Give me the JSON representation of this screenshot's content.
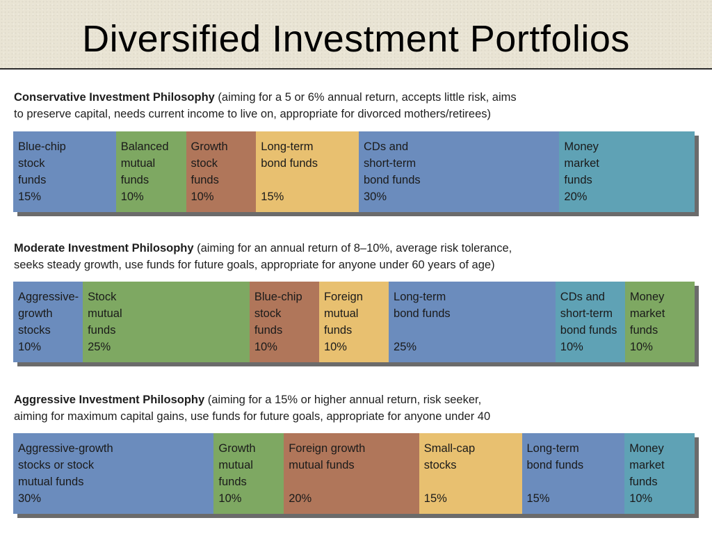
{
  "title": "Diversified Investment Portfolios",
  "colors": {
    "blue": "#6b8cbd",
    "green": "#7ea862",
    "brown": "#b0765a",
    "yellow": "#e8c070",
    "teal": "#5fa2b5"
  },
  "sections": [
    {
      "heading_bold": "Conservative Investment Philosophy",
      "heading_line1": " (aiming for a 5 or 6% annual return, accepts little risk, aims",
      "heading_line2": "to preserve capital, needs current income to live on, appropriate for divorced mothers/retirees)",
      "segments": [
        {
          "label": "Blue-chip\nstock\nfunds",
          "value": "15%",
          "color": "blue"
        },
        {
          "label": "Balanced\nmutual\nfunds",
          "value": "10%",
          "color": "green"
        },
        {
          "label": "Growth\nstock\nfunds",
          "value": "10%",
          "color": "brown"
        },
        {
          "label": "Long-term\nbond funds",
          "value": "15%",
          "color": "yellow"
        },
        {
          "label": "CDs and\nshort-term\nbond funds",
          "value": "30%",
          "color": "blue"
        },
        {
          "label": "Money\nmarket\nfunds",
          "value": "20%",
          "color": "teal"
        }
      ]
    },
    {
      "heading_bold": "Moderate Investment Philosophy",
      "heading_line1": " (aiming for an annual return of 8–10%, average risk tolerance,",
      "heading_line2": "seeks steady growth, use funds for future goals, appropriate for anyone under 60 years of age)",
      "segments": [
        {
          "label": "Aggressive-\ngrowth\nstocks",
          "value": "10%",
          "color": "blue"
        },
        {
          "label": "Stock\nmutual\nfunds",
          "value": "25%",
          "color": "green"
        },
        {
          "label": "Blue-chip\nstock\nfunds",
          "value": "10%",
          "color": "brown"
        },
        {
          "label": "Foreign\nmutual\nfunds",
          "value": "10%",
          "color": "yellow"
        },
        {
          "label": "Long-term\nbond funds",
          "value": "25%",
          "color": "blue"
        },
        {
          "label": "CDs and\nshort-term\nbond funds",
          "value": "10%",
          "color": "teal"
        },
        {
          "label": "Money\nmarket\nfunds",
          "value": "10%",
          "color": "green"
        }
      ]
    },
    {
      "heading_bold": "Aggressive Investment Philosophy",
      "heading_line1": " (aiming for a 15% or higher annual return, risk seeker,",
      "heading_line2": "aiming for maximum capital gains, use funds for future goals, appropriate for anyone under 40",
      "segments": [
        {
          "label": "Aggressive-growth\nstocks or stock\nmutual funds",
          "value": "30%",
          "color": "blue"
        },
        {
          "label": "Growth\nmutual\nfunds",
          "value": "10%",
          "color": "green"
        },
        {
          "label": "Foreign growth\nmutual funds",
          "value": "20%",
          "color": "brown"
        },
        {
          "label": "Small-cap\nstocks",
          "value": "15%",
          "color": "yellow"
        },
        {
          "label": "Long-term\nbond funds",
          "value": "15%",
          "color": "blue"
        },
        {
          "label": "Money\nmarket\nfunds",
          "value": "10%",
          "color": "teal"
        }
      ]
    }
  ]
}
